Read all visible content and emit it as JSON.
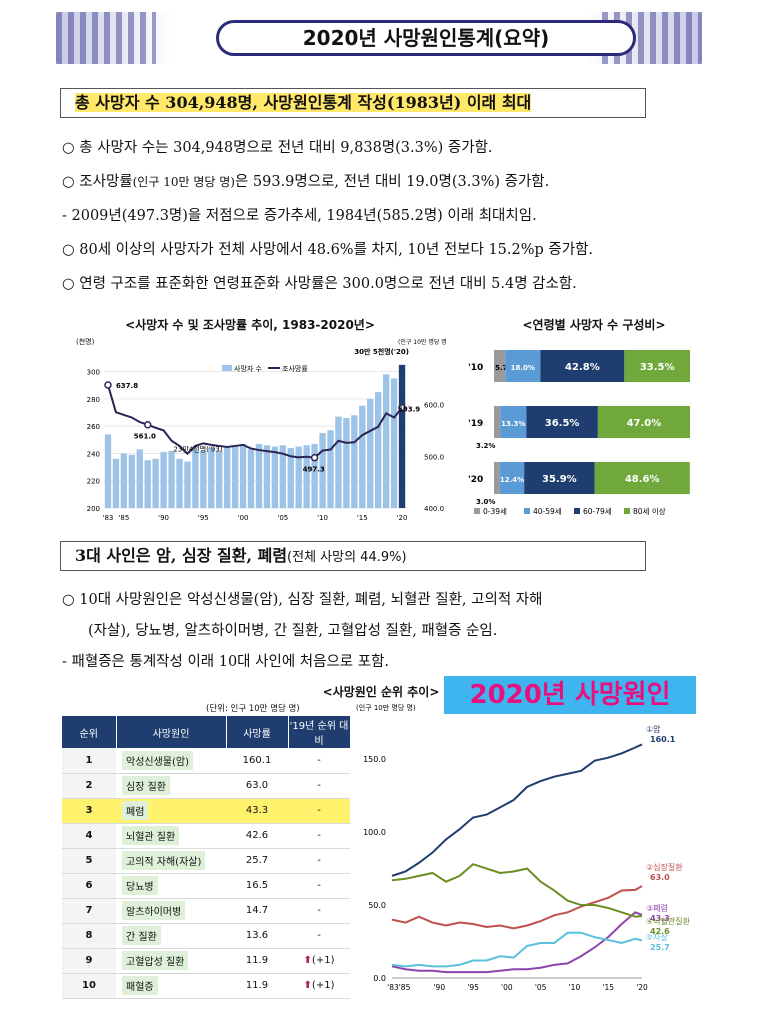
{
  "banner": {
    "title": "2020년 사망원인통계(요약)"
  },
  "section1": {
    "heading": "총 사망자 수 304,948명, 사망원인통계 작성(1983년) 이래 최대",
    "bullets": [
      "○  총 사망자 수는 304,948명으로 전년 대비 9,838명(3.3%) 증가함.",
      "○  조사망률",
      "(인구 10만 명당 명)",
      "은 593.9명으로, 전년 대비 19.0명(3.3%) 증가함.",
      " - 2009년(497.3명)을 저점으로 증가추세, 1984년(585.2명) 이래 최대치임.",
      "○  80세 이상의 사망자가 전체 사망에서 48.6%를 차지, 10년 전보다 15.2%p 증가함.",
      "○  연령 구조를 표준화한 연령표준화 사망률은 300.0명으로 전년 대비 5.4명 감소함."
    ]
  },
  "section2": {
    "heading": "3대 사인은 암, 심장 질환, 폐렴",
    "heading_note": "(전체 사망의 44.9%)",
    "bullets": [
      "○  10대 사망원인은 악성신생물(암), 심장 질환, 폐렴, 뇌혈관 질환, 고의적 자해",
      "(자살), 당뇨병, 알츠하이머병, 간 질환, 고혈압성 질환, 패혈증 순임.",
      " - 패혈증은 통계작성 이래 10대 사인에 처음으로 포함."
    ]
  },
  "overlay_label": "2020년 사망원인",
  "chart1_title": "<사망자 수 및 조사망률 추이, 1983-2020년>",
  "chart2_title": "<연령별 사망자 수 구성비>",
  "chart3_title": "<사망원인 순위 추이>",
  "table": {
    "unit": "(단위: 인구 10만 명당 명)",
    "headers": [
      "순위",
      "사망원인",
      "사망률",
      "'19년 순위 대비"
    ],
    "rows": [
      {
        "rank": "1",
        "name": "악성신생물(암)",
        "rate": "160.1",
        "change": "-"
      },
      {
        "rank": "2",
        "name": "심장 질환",
        "rate": "63.0",
        "change": "-"
      },
      {
        "rank": "3",
        "name": "폐렴",
        "rate": "43.3",
        "change": "-"
      },
      {
        "rank": "4",
        "name": "뇌혈관 질환",
        "rate": "42.6",
        "change": "-"
      },
      {
        "rank": "5",
        "name": "고의적 자해(자살)",
        "rate": "25.7",
        "change": "-"
      },
      {
        "rank": "6",
        "name": "당뇨병",
        "rate": "16.5",
        "change": "-"
      },
      {
        "rank": "7",
        "name": "알츠하이머병",
        "rate": "14.7",
        "change": "-"
      },
      {
        "rank": "8",
        "name": "간 질환",
        "rate": "13.6",
        "change": "-"
      },
      {
        "rank": "9",
        "name": "고혈압성 질환",
        "rate": "11.9",
        "change": "(+1)"
      },
      {
        "rank": "10",
        "name": "패혈증",
        "rate": "11.9",
        "change": "(+1)"
      }
    ]
  },
  "chart_data": [
    {
      "type": "bar",
      "title": "<사망자 수 및 조사망률 추이, 1983-2020년>",
      "left_unit": "(천명)",
      "right_unit": "(인구 10만 명당 명)",
      "ylim": [
        200,
        310
      ],
      "y2lim": [
        400,
        690
      ],
      "yticks": [
        200,
        220,
        240,
        260,
        280,
        300
      ],
      "y2ticks": [
        400.0,
        500.0,
        600.0
      ],
      "xtick_labels": [
        "'83",
        "'85",
        "'90",
        "'95",
        "'00",
        "'05",
        "'10",
        "'15",
        "'20"
      ],
      "legend": [
        "사망자 수",
        "조사망률"
      ],
      "years": [
        1983,
        1984,
        1985,
        1986,
        1987,
        1988,
        1989,
        1990,
        1991,
        1992,
        1993,
        1994,
        1995,
        1996,
        1997,
        1998,
        1999,
        2000,
        2001,
        2002,
        2003,
        2004,
        2005,
        2006,
        2007,
        2008,
        2009,
        2010,
        2011,
        2012,
        2013,
        2014,
        2015,
        2016,
        2017,
        2018,
        2019,
        2020
      ],
      "deaths_thousand": [
        254,
        236,
        240,
        239,
        243,
        235,
        236,
        241,
        242,
        236,
        234,
        243,
        242,
        244,
        242,
        245,
        246,
        247,
        243,
        247,
        246,
        245,
        246,
        244,
        245,
        246,
        247,
        255,
        257,
        267,
        266,
        268,
        275,
        280,
        285,
        298,
        295,
        305
      ],
      "crude_rate": [
        637.8,
        585.2,
        580,
        575,
        566,
        561.0,
        555,
        550,
        530,
        520,
        505,
        520,
        525,
        522,
        520,
        518,
        520,
        522,
        515,
        512,
        510,
        508,
        505,
        500,
        498,
        499,
        497.3,
        511,
        513,
        530,
        526,
        527,
        541,
        549,
        557,
        583,
        574.9,
        593.9
      ],
      "annotations": [
        "637.8",
        "561.0",
        "23만4천명('93)",
        "497.3",
        "30만 5천명('20)",
        "593.9"
      ]
    },
    {
      "type": "bar",
      "title": "<연령별 사망자 수 구성비>",
      "categories": [
        "'10",
        "'19",
        "'20"
      ],
      "series": [
        {
          "name": "0-39세",
          "values": [
            5.7,
            3.2,
            3.0
          ]
        },
        {
          "name": "40-59세",
          "values": [
            18.0,
            13.3,
            12.4
          ]
        },
        {
          "name": "60-79세",
          "values": [
            42.8,
            36.5,
            35.9
          ]
        },
        {
          "name": "80세 이상",
          "values": [
            33.5,
            47.0,
            48.6
          ]
        }
      ],
      "colors": [
        "#9a9a9a",
        "#5b9bd5",
        "#1f3d6e",
        "#70a83c"
      ]
    },
    {
      "type": "line",
      "title": "<사망원인 순위 추이>",
      "unit": "(인구 10만 명당 명)",
      "ylim": [
        0,
        170
      ],
      "yticks": [
        "0.0",
        "50.0",
        "100.0",
        "150.0"
      ],
      "xtick_labels": [
        "'83'85",
        "'90",
        "'95",
        "'00",
        "'05",
        "'10",
        "'15",
        "'20"
      ],
      "x": [
        1983,
        1985,
        1987,
        1989,
        1991,
        1993,
        1995,
        1997,
        1999,
        2001,
        2003,
        2005,
        2007,
        2009,
        2011,
        2013,
        2015,
        2017,
        2019,
        2020
      ],
      "series": [
        {
          "name": "①암",
          "label": "160.1",
          "color": "#1f3d6e",
          "values": [
            70,
            73,
            79,
            86,
            95,
            102,
            110,
            112,
            117,
            122,
            131,
            135,
            138,
            140,
            142,
            149,
            151,
            154,
            158,
            160.1
          ]
        },
        {
          "name": "②심장질환",
          "label": "63.0",
          "color": "#c0504d",
          "values": [
            40,
            38,
            42,
            38,
            36,
            38,
            37,
            35,
            36,
            34,
            36,
            39,
            43,
            45,
            49,
            52,
            55,
            60,
            60.4,
            63.0
          ]
        },
        {
          "name": "③폐렴",
          "label": "43.3",
          "color": "#8e44ad",
          "values": [
            8,
            6,
            5,
            5,
            4,
            4,
            4,
            4,
            5,
            6,
            6,
            7,
            9,
            10,
            15,
            21,
            28,
            37,
            45,
            43.3
          ]
        },
        {
          "name": "④뇌혈관질환",
          "label": "42.6",
          "color": "#6b8e23",
          "values": [
            67,
            68,
            70,
            72,
            66,
            70,
            78,
            75,
            72,
            73,
            75,
            66,
            60,
            53,
            50,
            50,
            48,
            45,
            42,
            42.6
          ]
        },
        {
          "name": "⑤자살",
          "label": "25.7",
          "color": "#5bc0de",
          "values": [
            9,
            8,
            9,
            8,
            8,
            9,
            12,
            12,
            15,
            14,
            22,
            24,
            24,
            31,
            31,
            28,
            26,
            24,
            26.9,
            25.7
          ]
        }
      ]
    }
  ]
}
